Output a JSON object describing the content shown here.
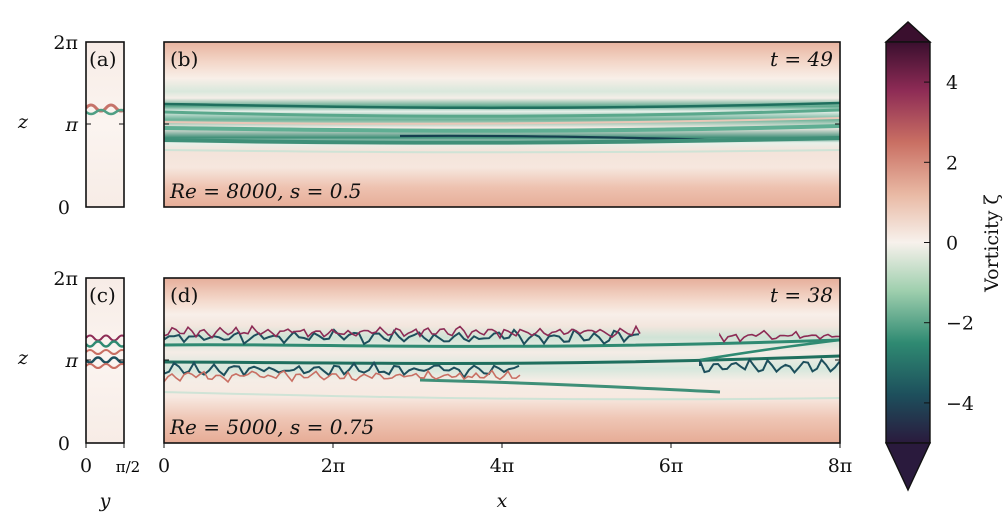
{
  "chart_data": {
    "type": "heatmap",
    "colorbar": {
      "label": "Vorticity ζ",
      "range": [
        -5,
        5
      ],
      "ticks": [
        -4,
        -2,
        0,
        2,
        4
      ],
      "tick_labels": [
        "−4",
        "−2",
        "0",
        "2",
        "4"
      ],
      "extend": "both",
      "colors": [
        "#2a1a3d",
        "#1d4f5c",
        "#2f8a72",
        "#9fcfae",
        "#f7f1ec",
        "#e9b9a4",
        "#c96f63",
        "#8d2b55",
        "#3a0f2e"
      ]
    },
    "panels": [
      {
        "tag": "(a)",
        "xlabel": "",
        "ylabel": "z",
        "ylim_label": [
          "0",
          "π",
          "2π"
        ]
      },
      {
        "tag": "(b)",
        "time": "t = 49",
        "params": "Re = 8000,  s = 0.5"
      },
      {
        "tag": "(c)",
        "xlabel": "y",
        "ylabel": "z",
        "xtick_labels": [
          "0",
          "π/2"
        ],
        "ytick_labels": [
          "0",
          "π",
          "2π"
        ]
      },
      {
        "tag": "(d)",
        "time": "t = 38",
        "params": "Re = 5000,  s = 0.75",
        "xlabel": "x",
        "xtick_labels": [
          "0",
          "2π",
          "4π",
          "6π",
          "8π"
        ]
      }
    ]
  }
}
